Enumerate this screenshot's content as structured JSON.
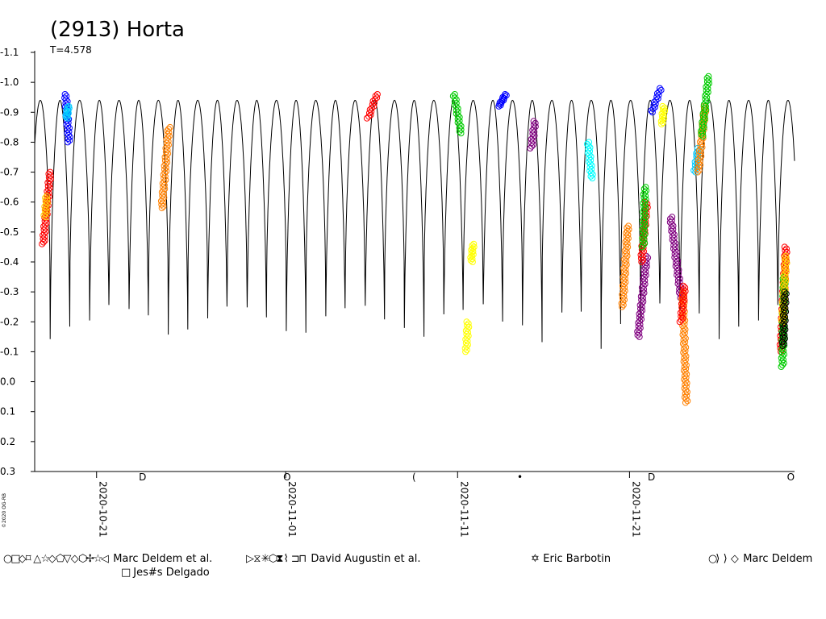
{
  "chart_data": {
    "type": "scatter",
    "title": "(2913) Horta",
    "subtitle": "T=4.578",
    "credit": "©2020 OG-RB",
    "xlabel": "",
    "ylabel": "",
    "y_inverted": true,
    "ylim": [
      -1.1,
      0.3
    ],
    "y_ticks": [
      "-1.1",
      "-1.0",
      "-0.9",
      "-0.8",
      "-0.7",
      "-0.6",
      "-0.5",
      "-0.4",
      "-0.3",
      "-0.2",
      "-0.1",
      "0.0",
      "0.1",
      "0.2",
      "0.3"
    ],
    "y_tick_values": [
      -1.1,
      -1.0,
      -0.9,
      -0.8,
      -0.7,
      -0.6,
      -0.5,
      -0.4,
      -0.3,
      -0.2,
      -0.1,
      0.0,
      0.1,
      0.2,
      0.3
    ],
    "x_range_days": [
      -3.6,
      40.6
    ],
    "x_ticks": [
      {
        "label": "2020-10-21",
        "day": 0
      },
      {
        "label": "2020-11-01",
        "day": 11
      },
      {
        "label": "2020-11-11",
        "day": 21
      },
      {
        "label": "2020-11-21",
        "day": 31
      }
    ],
    "moon_phase_markers": [
      {
        "day": 2.6,
        "symbol": "D"
      },
      {
        "day": 11,
        "symbol": "O"
      },
      {
        "day": 18.5,
        "symbol": "("
      },
      {
        "day": 24.6,
        "symbol": "•"
      },
      {
        "day": 32.2,
        "symbol": "D"
      },
      {
        "day": 40.3,
        "symbol": "O"
      }
    ],
    "model_curve": {
      "period_days": 2.289,
      "phase_min_day": -2.7,
      "min_deep": -0.11,
      "min_shallow": -0.3,
      "max": -0.94,
      "start_day": -3.6,
      "end_day": 40.6,
      "color": "#000000"
    },
    "series": [
      {
        "group": "Marc Deldem et al.",
        "color": "#ff0000",
        "day_start": -3.1,
        "day_end": -2.7,
        "mag_start": -0.46,
        "mag_end": -0.7
      },
      {
        "group": "Marc Deldem et al.",
        "color": "#ffcc00",
        "day_start": -3.0,
        "day_end": -2.9,
        "mag_start": -0.55,
        "mag_end": -0.62
      },
      {
        "group": "Marc Deldem et al.",
        "color": "#0000ff",
        "day_start": -1.8,
        "day_end": -1.6,
        "mag_start": -0.96,
        "mag_end": -0.8
      },
      {
        "group": "Marc Deldem et al.",
        "color": "#00ccff",
        "day_start": -1.75,
        "day_end": -1.65,
        "mag_start": -0.88,
        "mag_end": -0.92
      },
      {
        "group": "Marc Deldem et al.",
        "color": "#ff8000",
        "day_start": 3.8,
        "day_end": 4.2,
        "mag_start": -0.58,
        "mag_end": -0.85
      },
      {
        "group": "Marc Deldem et al.",
        "color": "#ff0000",
        "day_start": 15.8,
        "day_end": 16.3,
        "mag_start": -0.88,
        "mag_end": -0.96
      },
      {
        "group": "Marc Deldem et al.",
        "color": "#00cc00",
        "day_start": 20.8,
        "day_end": 21.2,
        "mag_start": -0.96,
        "mag_end": -0.83
      },
      {
        "group": "Marc Deldem et al.",
        "color": "#ffff00",
        "day_start": 21.5,
        "day_end": 21.6,
        "mag_start": -0.1,
        "mag_end": -0.2
      },
      {
        "group": "Marc Deldem et al.",
        "color": "#ffff00",
        "day_start": 21.8,
        "day_end": 21.9,
        "mag_start": -0.4,
        "mag_end": -0.46
      },
      {
        "group": "Marc Deldem et al.",
        "color": "#0000ff",
        "day_start": 23.4,
        "day_end": 23.8,
        "mag_start": -0.92,
        "mag_end": -0.96
      },
      {
        "group": "David Augustin et al.",
        "color": "#800080",
        "day_start": 25.3,
        "day_end": 25.5,
        "mag_start": -0.78,
        "mag_end": -0.87
      },
      {
        "group": "Marc Deldem",
        "color": "#00ffff",
        "day_start": 28.6,
        "day_end": 28.8,
        "mag_start": -0.8,
        "mag_end": -0.68
      },
      {
        "group": "Jes#s Delgado",
        "color": "#ff8000",
        "day_start": 30.6,
        "day_end": 30.9,
        "mag_start": -0.25,
        "mag_end": -0.52
      },
      {
        "group": "David Augustin et al.",
        "color": "#800080",
        "day_start": 31.5,
        "day_end": 32.0,
        "mag_start": -0.15,
        "mag_end": -0.42
      },
      {
        "group": "David Augustin et al.",
        "color": "#ff0000",
        "day_start": 31.7,
        "day_end": 32.0,
        "mag_start": -0.4,
        "mag_end": -0.6
      },
      {
        "group": "David Augustin et al.",
        "color": "#00cc00",
        "day_start": 31.8,
        "day_end": 31.9,
        "mag_start": -0.45,
        "mag_end": -0.65
      },
      {
        "group": "Marc Deldem et al.",
        "color": "#0000ff",
        "day_start": 32.3,
        "day_end": 32.8,
        "mag_start": -0.9,
        "mag_end": -0.98
      },
      {
        "group": "Marc Deldem et al.",
        "color": "#ffff00",
        "day_start": 32.9,
        "day_end": 33.0,
        "mag_start": -0.86,
        "mag_end": -0.92
      },
      {
        "group": "David Augustin et al.",
        "color": "#800080",
        "day_start": 33.4,
        "day_end": 34.0,
        "mag_start": -0.55,
        "mag_end": -0.28
      },
      {
        "group": "David Augustin et al.",
        "color": "#ff8000",
        "day_start": 34.1,
        "day_end": 34.3,
        "mag_start": -0.3,
        "mag_end": 0.07
      },
      {
        "group": "David Augustin et al.",
        "color": "#ff0000",
        "day_start": 34.0,
        "day_end": 34.2,
        "mag_start": -0.2,
        "mag_end": -0.32
      },
      {
        "group": "Marc Deldem et al.",
        "color": "#00ccff",
        "day_start": 34.8,
        "day_end": 35.0,
        "mag_start": -0.7,
        "mag_end": -0.78
      },
      {
        "group": "Marc Deldem et al.",
        "color": "#ff8000",
        "day_start": 35.0,
        "day_end": 35.4,
        "mag_start": -0.7,
        "mag_end": -0.92
      },
      {
        "group": "Marc Deldem et al.",
        "color": "#00cc00",
        "day_start": 35.2,
        "day_end": 35.6,
        "mag_start": -0.82,
        "mag_end": -1.02
      },
      {
        "group": "David Augustin et al.",
        "color": "#ff0000",
        "day_start": 39.8,
        "day_end": 40.1,
        "mag_start": -0.1,
        "mag_end": -0.45
      },
      {
        "group": "David Augustin et al.",
        "color": "#00cc00",
        "day_start": 39.9,
        "day_end": 40.0,
        "mag_start": -0.05,
        "mag_end": -0.35
      },
      {
        "group": "Marc Deldem et al.",
        "color": "#ffcc00",
        "day_start": 39.9,
        "day_end": 40.1,
        "mag_start": -0.2,
        "mag_end": -0.42
      },
      {
        "group": "Marc Deldem et al.",
        "color": "#000000",
        "day_start": 39.95,
        "day_end": 40.05,
        "mag_start": -0.12,
        "mag_end": -0.3
      }
    ],
    "legend": [
      {
        "label": "Marc Deldem et al.",
        "symbols": "○□◇⌑△☆◇⬠▽◇⬡✢☆◁",
        "colors": [
          "#ff0000",
          "#ffcc00",
          "#ff8000",
          "#800080",
          "#0000ff",
          "#00ccff",
          "#ff8000",
          "#00cc00",
          "#ffcc00",
          "#ff8000",
          "#00ccff",
          "#800080",
          "#00ccff",
          "#ff8000"
        ]
      },
      {
        "label": "David Augustin et al.",
        "symbols": "▷⧖✳⬡⧗⌇⊐⊓",
        "colors": [
          "#ff0000",
          "#00cc00",
          "#0000ff",
          "#ff0000",
          "#800080",
          "#00cc00",
          "#ff8000",
          "#ff0000"
        ]
      },
      {
        "label": "Eric Barbotin",
        "symbols": "✡",
        "colors": [
          "#800080"
        ]
      },
      {
        "label": "Marc Deldem",
        "symbols": "○⟩⟩◇",
        "colors": [
          "#00ccff",
          "#0000ff",
          "#0000ff",
          "#00ccff"
        ]
      },
      {
        "label": "Jes#s Delgado",
        "symbols": "□",
        "colors": [
          "#ff8000"
        ]
      }
    ]
  }
}
